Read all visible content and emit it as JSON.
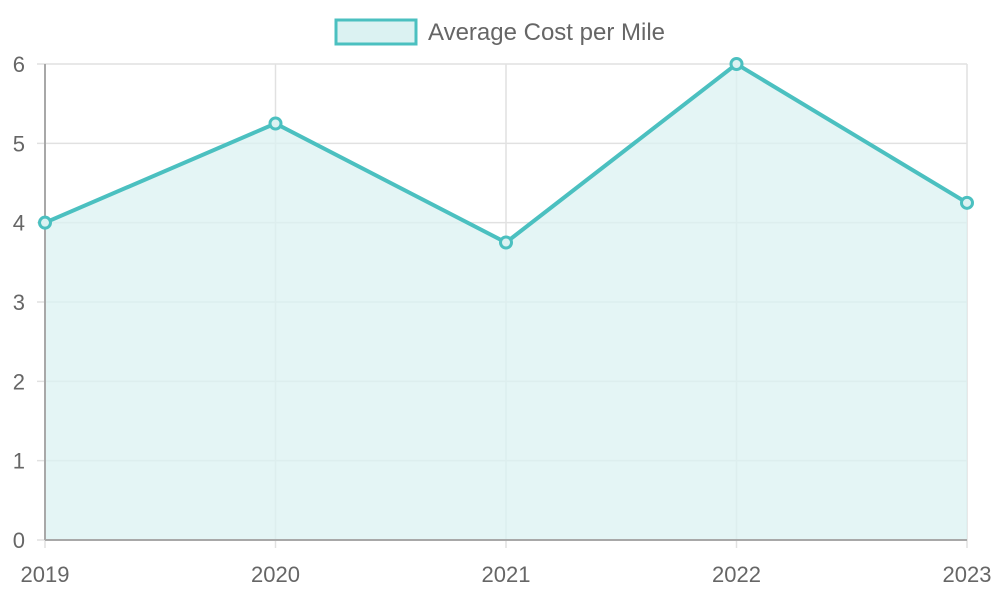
{
  "chart_data": {
    "type": "area",
    "categories": [
      "2019",
      "2020",
      "2021",
      "2022",
      "2023"
    ],
    "series": [
      {
        "name": "Average Cost per Mile",
        "values": [
          4.0,
          5.25,
          3.75,
          6.0,
          4.25
        ]
      }
    ],
    "ylim": [
      0,
      6
    ],
    "yticks": [
      0,
      1,
      2,
      3,
      4,
      5,
      6
    ],
    "grid": true,
    "legend_position": "top-center",
    "colors": {
      "line": "#4bc0c0",
      "fill": "#dbf2f2",
      "grid": "#e1e1e1",
      "axis": "#a8a8a8"
    }
  }
}
